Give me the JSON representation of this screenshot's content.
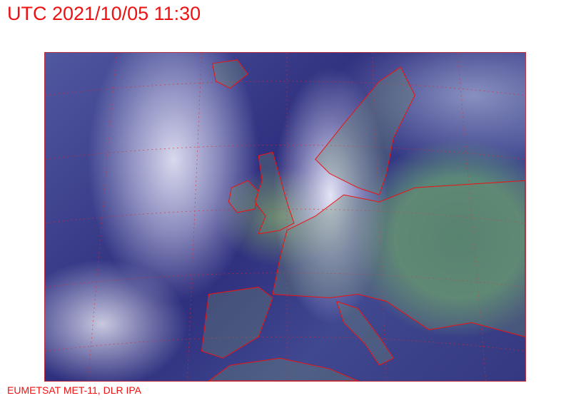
{
  "header": {
    "title": "UTC 2021/10/05 11:30"
  },
  "footer": {
    "credit": "EUMETSAT MET-11, DLR IPA"
  },
  "map": {
    "type": "satellite-rgb-composite",
    "overlay_color": "#ee1111",
    "graticule": "dotted"
  }
}
